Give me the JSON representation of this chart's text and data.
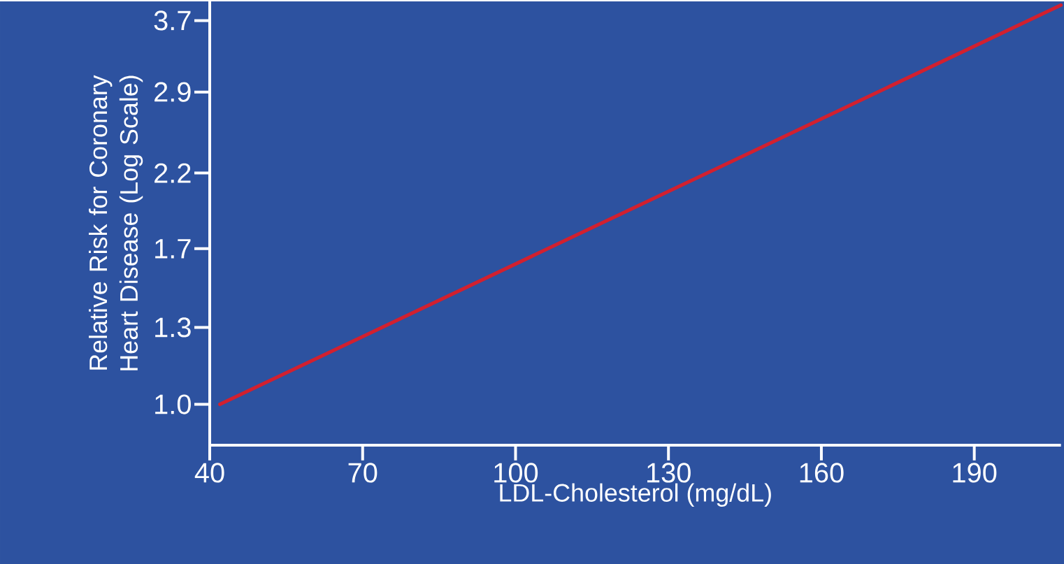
{
  "chart_data": {
    "type": "line",
    "xlabel": "LDL-Cholesterol (mg/dL)",
    "ylabel": "Relative Risk for Coronary Heart Disease (Log Scale)",
    "x": [
      42,
      207
    ],
    "series": [
      {
        "color": "#d2202f",
        "values": [
          1.0,
          3.9
        ]
      }
    ],
    "xlim": [
      40,
      207
    ],
    "ylim": [
      0.87,
      3.95
    ],
    "xticks": [
      40,
      70,
      100,
      130,
      160,
      190
    ],
    "yticks": [
      {
        "value": 1.0,
        "label": "1.0"
      },
      1.3,
      1.7,
      2.2,
      2.9,
      3.7
    ],
    "log": true
  }
}
